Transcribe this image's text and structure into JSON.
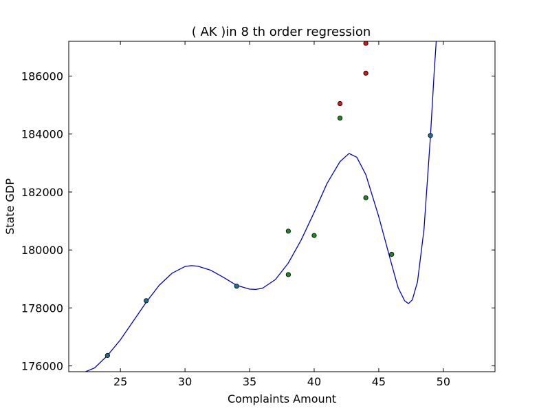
{
  "chart_data": {
    "type": "scatter",
    "title": "(  AK  )in 8 th order regression",
    "xlabel": "Complaints Amount",
    "ylabel": "State GDP",
    "xlim": [
      21,
      54
    ],
    "ylim": [
      175800,
      187200
    ],
    "xticks": [
      25,
      30,
      35,
      40,
      45,
      50
    ],
    "yticks": [
      176000,
      178000,
      180000,
      182000,
      184000,
      186000
    ],
    "xtick_labels": [
      "25",
      "30",
      "35",
      "40",
      "45",
      "50"
    ],
    "ytick_labels": [
      "176000",
      "178000",
      "180000",
      "182000",
      "184000",
      "186000"
    ],
    "grid": false,
    "series": [
      {
        "kind": "points",
        "color": "#1f6f8b",
        "points": [
          {
            "x": 24,
            "y": 176360
          },
          {
            "x": 27,
            "y": 178250
          },
          {
            "x": 34,
            "y": 178750
          },
          {
            "x": 49,
            "y": 183950
          }
        ]
      },
      {
        "kind": "points",
        "color": "#1a8a1a",
        "points": [
          {
            "x": 38,
            "y": 180650
          },
          {
            "x": 38,
            "y": 179150
          },
          {
            "x": 40,
            "y": 180500
          },
          {
            "x": 42,
            "y": 184550
          },
          {
            "x": 44,
            "y": 181800
          },
          {
            "x": 46,
            "y": 179850
          }
        ]
      },
      {
        "kind": "points",
        "color": "#cc1a1a",
        "points": [
          {
            "x": 42,
            "y": 185050
          },
          {
            "x": 44,
            "y": 186100
          },
          {
            "x": 44,
            "y": 187130
          }
        ]
      },
      {
        "kind": "curve",
        "color": "#0000cc",
        "points": [
          {
            "x": 22.3,
            "y": 175800
          },
          {
            "x": 23.0,
            "y": 175930
          },
          {
            "x": 24.0,
            "y": 176360
          },
          {
            "x": 25.0,
            "y": 176900
          },
          {
            "x": 26.0,
            "y": 177550
          },
          {
            "x": 27.0,
            "y": 178200
          },
          {
            "x": 28.0,
            "y": 178780
          },
          {
            "x": 29.0,
            "y": 179200
          },
          {
            "x": 30.0,
            "y": 179430
          },
          {
            "x": 30.5,
            "y": 179460
          },
          {
            "x": 31.0,
            "y": 179440
          },
          {
            "x": 32.0,
            "y": 179300
          },
          {
            "x": 33.0,
            "y": 179050
          },
          {
            "x": 34.0,
            "y": 178780
          },
          {
            "x": 35.0,
            "y": 178650
          },
          {
            "x": 35.5,
            "y": 178640
          },
          {
            "x": 36.0,
            "y": 178680
          },
          {
            "x": 37.0,
            "y": 178980
          },
          {
            "x": 38.0,
            "y": 179550
          },
          {
            "x": 39.0,
            "y": 180350
          },
          {
            "x": 40.0,
            "y": 181300
          },
          {
            "x": 41.0,
            "y": 182300
          },
          {
            "x": 42.0,
            "y": 183050
          },
          {
            "x": 42.7,
            "y": 183330
          },
          {
            "x": 43.3,
            "y": 183200
          },
          {
            "x": 44.0,
            "y": 182600
          },
          {
            "x": 45.0,
            "y": 181150
          },
          {
            "x": 46.0,
            "y": 179500
          },
          {
            "x": 46.5,
            "y": 178700
          },
          {
            "x": 47.0,
            "y": 178250
          },
          {
            "x": 47.3,
            "y": 178150
          },
          {
            "x": 47.6,
            "y": 178280
          },
          {
            "x": 48.0,
            "y": 178900
          },
          {
            "x": 48.5,
            "y": 180700
          },
          {
            "x": 49.0,
            "y": 183900
          },
          {
            "x": 49.3,
            "y": 186200
          },
          {
            "x": 49.45,
            "y": 187200
          }
        ]
      }
    ]
  }
}
